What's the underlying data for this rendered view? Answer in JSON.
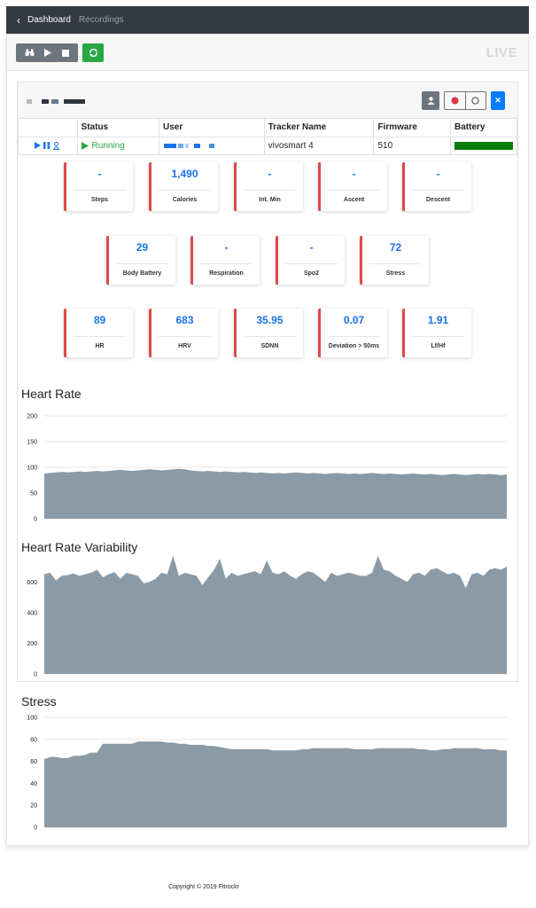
{
  "nav": {
    "back_icon": "chevron-left-icon",
    "links": [
      {
        "label": "Dashboard"
      },
      {
        "label": "Recordings"
      }
    ]
  },
  "toolbar": {
    "buttons": [
      "binoculars-icon",
      "play-icon",
      "stop-icon"
    ],
    "sync_button": "sync-icon",
    "live_label": "LIVE"
  },
  "colors": {
    "navbar": "#343a40",
    "running": "#28a745",
    "accent": "#1a73e8",
    "card_border": "#dc4a4a",
    "battery": "#0a7e0a",
    "chart_fill": "#8a9aa6"
  },
  "table": {
    "headers": [
      "",
      "Status",
      "User",
      "Tracker Name",
      "Firmware",
      "Battery"
    ],
    "rows": [
      {
        "status": "Running",
        "tracker_name": "vivosmart 4",
        "firmware": "510",
        "battery_level": 1.0
      }
    ]
  },
  "metrics": [
    {
      "value": "-",
      "label": "Steps"
    },
    {
      "value": "1,490",
      "label": "Calories"
    },
    {
      "value": "-",
      "label": "Int. Min"
    },
    {
      "value": "-",
      "label": "Ascent"
    },
    {
      "value": "-",
      "label": "Descent"
    },
    {
      "value": "29",
      "label": "Body Battery"
    },
    {
      "value": "-",
      "label": "Respiration"
    },
    {
      "value": "-",
      "label": "Spo2"
    },
    {
      "value": "72",
      "label": "Stress"
    },
    {
      "value": "89",
      "label": "HR"
    },
    {
      "value": "683",
      "label": "HRV"
    },
    {
      "value": "35.95",
      "label": "SDNN"
    },
    {
      "value": "0.07",
      "label": "Deviation > 50ms"
    },
    {
      "value": "1.91",
      "label": "Lf/Hf"
    }
  ],
  "chart_data": [
    {
      "type": "area",
      "title": "Heart Rate",
      "ylim": [
        0,
        200
      ],
      "yticks": [
        0,
        50,
        100,
        150,
        200
      ],
      "grid": true,
      "values": [
        88,
        89,
        90,
        91,
        90,
        91,
        92,
        91,
        92,
        93,
        92,
        93,
        94,
        95,
        94,
        93,
        94,
        95,
        96,
        95,
        94,
        95,
        96,
        97,
        96,
        94,
        93,
        92,
        93,
        92,
        91,
        92,
        91,
        90,
        91,
        90,
        89,
        90,
        89,
        88,
        89,
        88,
        89,
        90,
        89,
        88,
        89,
        88,
        87,
        88,
        89,
        88,
        87,
        88,
        87,
        88,
        89,
        88,
        87,
        88,
        87,
        86,
        87,
        88,
        87,
        86,
        87,
        86,
        85,
        86,
        87,
        86,
        85,
        86,
        87,
        86,
        87,
        86,
        85,
        86
      ]
    },
    {
      "type": "area",
      "title": "Heart Rate Variability",
      "ylim": [
        0,
        700
      ],
      "yticks": [
        0,
        200,
        400,
        600
      ],
      "grid": true,
      "values": [
        650,
        660,
        610,
        640,
        645,
        655,
        640,
        650,
        660,
        680,
        630,
        650,
        665,
        620,
        660,
        650,
        640,
        590,
        600,
        620,
        660,
        650,
        770,
        640,
        660,
        650,
        640,
        580,
        630,
        680,
        750,
        620,
        660,
        640,
        650,
        660,
        670,
        650,
        740,
        660,
        650,
        670,
        640,
        620,
        650,
        670,
        660,
        630,
        600,
        660,
        640,
        650,
        660,
        650,
        640,
        640,
        660,
        770,
        680,
        670,
        640,
        620,
        600,
        650,
        660,
        640,
        680,
        690,
        670,
        650,
        660,
        640,
        560,
        650,
        660,
        640,
        680,
        690,
        680,
        700
      ]
    },
    {
      "type": "area",
      "title": "Stress",
      "ylim": [
        0,
        100
      ],
      "yticks": [
        0,
        20,
        40,
        60,
        80,
        100
      ],
      "grid": true,
      "values": [
        62,
        64,
        64,
        63,
        63,
        65,
        65,
        66,
        68,
        68,
        76,
        76,
        76,
        76,
        76,
        76,
        78,
        78,
        78,
        78,
        78,
        77,
        77,
        76,
        76,
        75,
        75,
        75,
        74,
        74,
        73,
        72,
        71,
        71,
        71,
        71,
        71,
        71,
        71,
        70,
        70,
        70,
        70,
        70,
        71,
        71,
        72,
        72,
        72,
        72,
        72,
        72,
        72,
        71,
        71,
        71,
        71,
        72,
        72,
        72,
        72,
        72,
        72,
        72,
        71,
        71,
        70,
        70,
        71,
        71,
        72,
        72,
        72,
        72,
        72,
        71,
        71,
        71,
        70,
        70
      ]
    }
  ],
  "footer": {
    "copyright": "Copyright © 2019 Fitrockr"
  }
}
